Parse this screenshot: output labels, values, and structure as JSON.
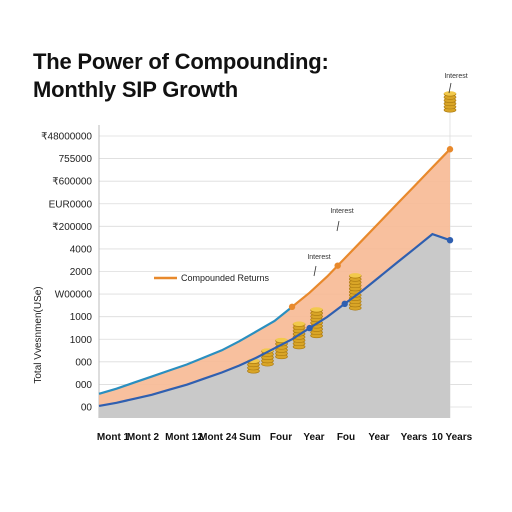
{
  "chart_data": {
    "type": "area",
    "title_line1": "The Power of Compounding:",
    "title_line2": "Monthly SIP Growth",
    "ylabel": "Total Vvesnmen(USe)",
    "xlabel": "",
    "y_tick_labels": [
      "₹48000000",
      "755000",
      "₹600000",
      "EUR0000",
      "₹200000",
      "4000",
      "2000",
      "W00000",
      "1000",
      "1000",
      "000",
      "000",
      "00"
    ],
    "x_tick_labels": [
      "Mont 1",
      "Mont 2",
      "Mont 12",
      "Mont 24",
      "Sum",
      "Four",
      "Year",
      "Fou",
      "Year",
      "Years",
      "10 Years"
    ],
    "legend": [
      {
        "label": "Compounded Returns",
        "color": "#e8892c"
      }
    ],
    "grid": "horizontal",
    "colors": {
      "compounded": "#e8892c",
      "invested": "#2f5fb0",
      "fill_returns": "#f7b994",
      "fill_invested": "#c9c9c9",
      "early_line": "#2a8fc0"
    },
    "annotations": [
      "Interest",
      "Interest",
      "Interest"
    ],
    "series": [
      {
        "name": "Compounded Returns",
        "color": "#e8892c",
        "x": [
          0,
          0.5,
          1,
          1.5,
          2,
          2.5,
          3,
          3.5,
          4,
          4.5,
          5,
          5.5,
          6,
          6.5,
          7,
          7.5,
          8,
          8.5,
          9,
          9.5,
          10
        ],
        "y": [
          1.2,
          1.45,
          1.75,
          2.05,
          2.35,
          2.65,
          3.0,
          3.35,
          3.8,
          4.3,
          4.8,
          5.5,
          6.2,
          7.0,
          7.9,
          8.8,
          9.7,
          10.6,
          11.5,
          12.4,
          13.3
        ]
      },
      {
        "name": "",
        "color": "#2f5fb0",
        "x": [
          0,
          0.5,
          1,
          1.5,
          2,
          2.5,
          3,
          3.5,
          4,
          4.5,
          5,
          5.5,
          6,
          6.5,
          7,
          7.5,
          8,
          8.5,
          9,
          9.5,
          10
        ],
        "y": [
          0.6,
          0.75,
          0.95,
          1.15,
          1.4,
          1.65,
          1.95,
          2.25,
          2.6,
          3.0,
          3.45,
          3.9,
          4.45,
          5.0,
          5.65,
          6.3,
          7.0,
          7.7,
          8.4,
          9.1,
          8.8
        ]
      }
    ],
    "markers_orange_x": [
      5.5,
      6.8,
      10
    ],
    "markers_blue_x": [
      6,
      7,
      10
    ],
    "coin_stacks": [
      {
        "x": 4.4,
        "coins": 4
      },
      {
        "x": 4.8,
        "coins": 5
      },
      {
        "x": 5.2,
        "coins": 6
      },
      {
        "x": 5.7,
        "coins": 8
      },
      {
        "x": 6.2,
        "coins": 9
      },
      {
        "x": 7.3,
        "coins": 11
      },
      {
        "x": 10.0,
        "coins": 6
      }
    ]
  }
}
